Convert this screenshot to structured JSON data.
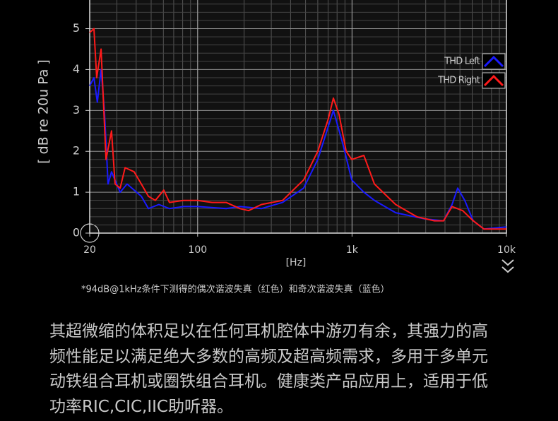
{
  "chart_data": {
    "type": "line",
    "ylabel": "[ dB re 20u Pa ]",
    "xlabel": "[Hz]",
    "footnote": "*94dB@1kHz条件下测得的偶次谐波失真（红色）和奇次谐波失真（蓝色）",
    "xscale": "log",
    "grid": true,
    "legend": "upper right",
    "xlim": [
      20,
      10000
    ],
    "ylim": [
      0,
      5.7
    ],
    "xticks": [
      20,
      100,
      {
        "value": 1000,
        "label": "1k"
      },
      {
        "value": 10000,
        "label": "10k"
      }
    ],
    "yticks": [
      0,
      1,
      2,
      3,
      4,
      5
    ],
    "series": [
      {
        "name": "THD Left",
        "color": "#1a1aff",
        "x": [
          20,
          21.3,
          22.4,
          23.7,
          24.9,
          26.3,
          27.7,
          31.5,
          34.9,
          43.2,
          48,
          56.1,
          65.7,
          81,
          100,
          153,
          188,
          259,
          355,
          486,
          600,
          757,
          869,
          996,
          1192,
          1396,
          1915,
          2918,
          3916,
          4445,
          4833,
          5372,
          6096,
          7142,
          10000
        ],
        "values": [
          3.6,
          3.8,
          3.2,
          4.0,
          3.0,
          1.2,
          1.5,
          1.0,
          1.2,
          0.9,
          0.6,
          0.7,
          0.6,
          0.65,
          0.65,
          0.6,
          0.65,
          0.6,
          0.75,
          1.1,
          1.8,
          3.0,
          2.2,
          1.3,
          1.0,
          0.8,
          0.5,
          0.35,
          0.3,
          0.7,
          1.1,
          0.8,
          0.3,
          0.1,
          0.15
        ]
      },
      {
        "name": "THD Right",
        "color": "#ff1a1a",
        "x": [
          20,
          21.3,
          22.2,
          23.7,
          25.5,
          27.7,
          29.2,
          31.5,
          33.9,
          38.8,
          43.2,
          48,
          53.2,
          60.4,
          65.7,
          81,
          100,
          124,
          153,
          188,
          214,
          259,
          355,
          415,
          486,
          600,
          703,
          757,
          824,
          916,
          996,
          1192,
          1396,
          1915,
          2625,
          3415,
          3916,
          4445,
          5204,
          6096,
          7142,
          10000
        ],
        "values": [
          4.9,
          5.0,
          3.8,
          4.5,
          1.8,
          2.5,
          1.2,
          1.1,
          1.6,
          1.5,
          1.2,
          0.9,
          0.8,
          1.05,
          0.75,
          0.8,
          0.8,
          0.75,
          0.75,
          0.6,
          0.55,
          0.7,
          0.8,
          1.05,
          1.3,
          2.0,
          2.8,
          3.3,
          2.9,
          2.0,
          1.8,
          1.9,
          1.2,
          0.7,
          0.4,
          0.3,
          0.3,
          0.65,
          0.55,
          0.3,
          0.1,
          0.1
        ]
      }
    ]
  },
  "paragraph": {
    "lines": [
      "其超微缩的体积足以在任何耳机腔体中游刃有余，其强力的高",
      "频性能足以满足绝大多数的高频及超高频需求，多用于多单元",
      "动铁组合耳机或圈铁组合耳机。健康类产品应用上，适用于低",
      "功率RIC,CIC,IIC助听器。"
    ]
  }
}
